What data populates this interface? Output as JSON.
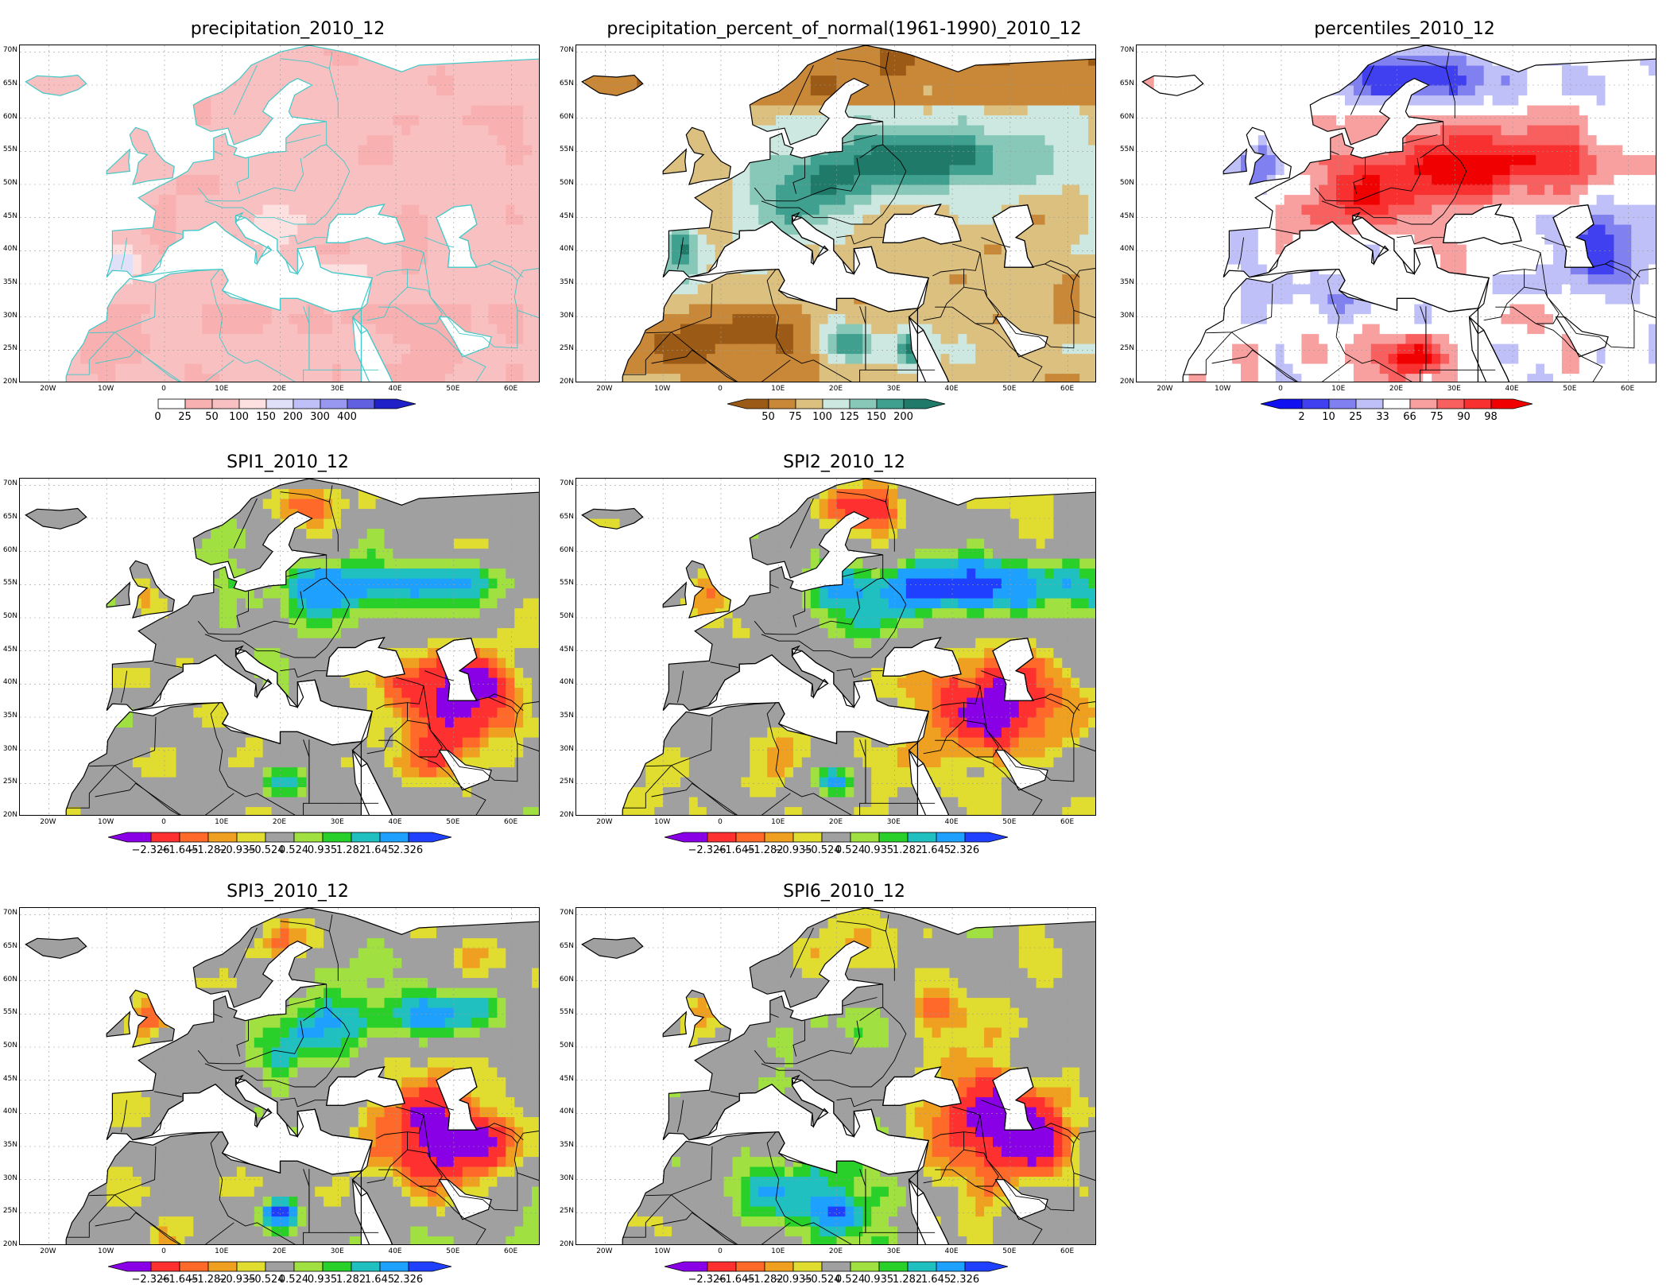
{
  "colors": {
    "spi": [
      "#8a00e6",
      "#ff3030",
      "#ff6a2a",
      "#f0a020",
      "#e0dc30",
      "#a0a0a0",
      "#a0e040",
      "#2ad02a",
      "#20c0c0",
      "#1ea0ff",
      "#2040ff"
    ],
    "precip": [
      "#ffffff",
      "#f9b0b0",
      "#f8c0c0",
      "#fde0e0",
      "#e0e0f8",
      "#c0c0f8",
      "#9898f0",
      "#6060e0",
      "#2020c8"
    ],
    "pct": [
      "#9b5a16",
      "#c88838",
      "#dcc080",
      "#cde8e0",
      "#88c8b8",
      "#40a090",
      "#207a6a"
    ],
    "perc": [
      "#1010f0",
      "#4040f0",
      "#8080f0",
      "#c0c0f8",
      "#ffffff",
      "#f8a0a0",
      "#f86060",
      "#f83030",
      "#f00000"
    ],
    "coast_precip": "#40c8c8",
    "coast_other": "#000000"
  },
  "map_axes": {
    "lat_labels": [
      "70N",
      "65N",
      "60N",
      "55N",
      "50N",
      "45N",
      "40N",
      "35N",
      "30N",
      "25N",
      "20N"
    ],
    "lon_labels": [
      "20W",
      "10W",
      "0",
      "10E",
      "20E",
      "30E",
      "40E",
      "50E",
      "60E"
    ]
  },
  "panels": [
    {
      "id": "precipitation",
      "title": "precipitation_2010_12",
      "scheme": "precip",
      "colorbar": {
        "labels": [
          "0",
          "25",
          "50",
          "100",
          "150",
          "200",
          "300",
          "400"
        ],
        "left_arrow": false,
        "right_arrow": true
      }
    },
    {
      "id": "pct_normal",
      "title": "precipitation_percent_of_normal(1961-1990)_2010_12",
      "scheme": "pct",
      "colorbar": {
        "labels": [
          "50",
          "75",
          "100",
          "125",
          "150",
          "200"
        ],
        "left_arrow": true,
        "right_arrow": true
      }
    },
    {
      "id": "percentiles",
      "title": "percentiles_2010_12",
      "scheme": "perc",
      "colorbar": {
        "labels": [
          "2",
          "10",
          "25",
          "33",
          "66",
          "75",
          "90",
          "98"
        ],
        "left_arrow": true,
        "right_arrow": true
      }
    },
    {
      "id": "spi1",
      "title": "SPI1_2010_12",
      "scheme": "spi",
      "colorbar": {
        "labels": [
          "-2.326",
          "-1.645",
          "-1.282",
          "-0.935",
          "-0.524",
          "0.524",
          "0.935",
          "1.282",
          "1.645",
          "2.326"
        ],
        "left_arrow": true,
        "right_arrow": true
      }
    },
    {
      "id": "spi2",
      "title": "SPI2_2010_12",
      "scheme": "spi",
      "colorbar": {
        "labels": [
          "-2.326",
          "-1.645",
          "-1.282",
          "-0.935",
          "-0.524",
          "0.524",
          "0.935",
          "1.282",
          "1.645",
          "2.326"
        ],
        "left_arrow": true,
        "right_arrow": true
      }
    },
    {
      "id": "spi3",
      "title": "SPI3_2010_12",
      "scheme": "spi",
      "colorbar": {
        "labels": [
          "-2.326",
          "-1.645",
          "-1.282",
          "-0.935",
          "-0.524",
          "0.524",
          "0.935",
          "1.282",
          "1.645",
          "2.326"
        ],
        "left_arrow": true,
        "right_arrow": true
      }
    },
    {
      "id": "spi6",
      "title": "SPI6_2010_12",
      "scheme": "spi",
      "colorbar": {
        "labels": [
          "-2.326",
          "-1.645",
          "-1.282",
          "-0.935",
          "-0.524",
          "0.524",
          "0.935",
          "1.282",
          "1.645",
          "2.326"
        ],
        "left_arrow": true,
        "right_arrow": true
      }
    }
  ]
}
